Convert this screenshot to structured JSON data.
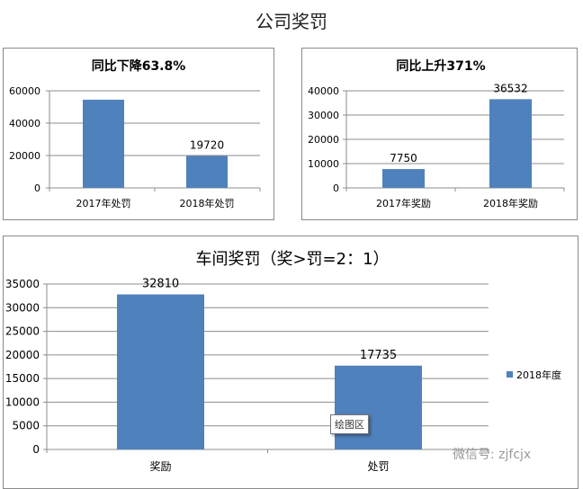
{
  "page_title": "公司奖罚",
  "tooltip": "绘图区",
  "watermark": "微信号: zjfcjx",
  "colors": {
    "bar": "#4f81bd",
    "grid": "#8c8c8c"
  },
  "chart_data": [
    {
      "type": "bar",
      "title": "同比下降63.8%",
      "categories": [
        "2017年处罚",
        "2018年处罚"
      ],
      "values": [
        54500,
        19720
      ],
      "data_labels": [
        "",
        "19720"
      ],
      "ylim": [
        0,
        60000
      ],
      "yticks": [
        "0",
        "20000",
        "40000",
        "60000"
      ],
      "grid": true
    },
    {
      "type": "bar",
      "title": "同比上升371%",
      "categories": [
        "2017年奖励",
        "2018年奖励"
      ],
      "values": [
        7750,
        36532
      ],
      "data_labels": [
        "7750",
        "36532"
      ],
      "ylim": [
        0,
        40000
      ],
      "yticks": [
        "0",
        "10000",
        "20000",
        "30000",
        "40000"
      ],
      "grid": true
    },
    {
      "type": "bar",
      "title": "车间奖罚（奖>罚=2：1）",
      "categories": [
        "奖励",
        "处罚"
      ],
      "series": [
        {
          "name": "2018年度",
          "values": [
            32810,
            17735
          ]
        }
      ],
      "data_labels": [
        "32810",
        "17735"
      ],
      "ylim": [
        0,
        35000
      ],
      "yticks": [
        "0",
        "5000",
        "10000",
        "15000",
        "20000",
        "25000",
        "30000",
        "35000"
      ],
      "grid": true,
      "legend": "right"
    }
  ]
}
